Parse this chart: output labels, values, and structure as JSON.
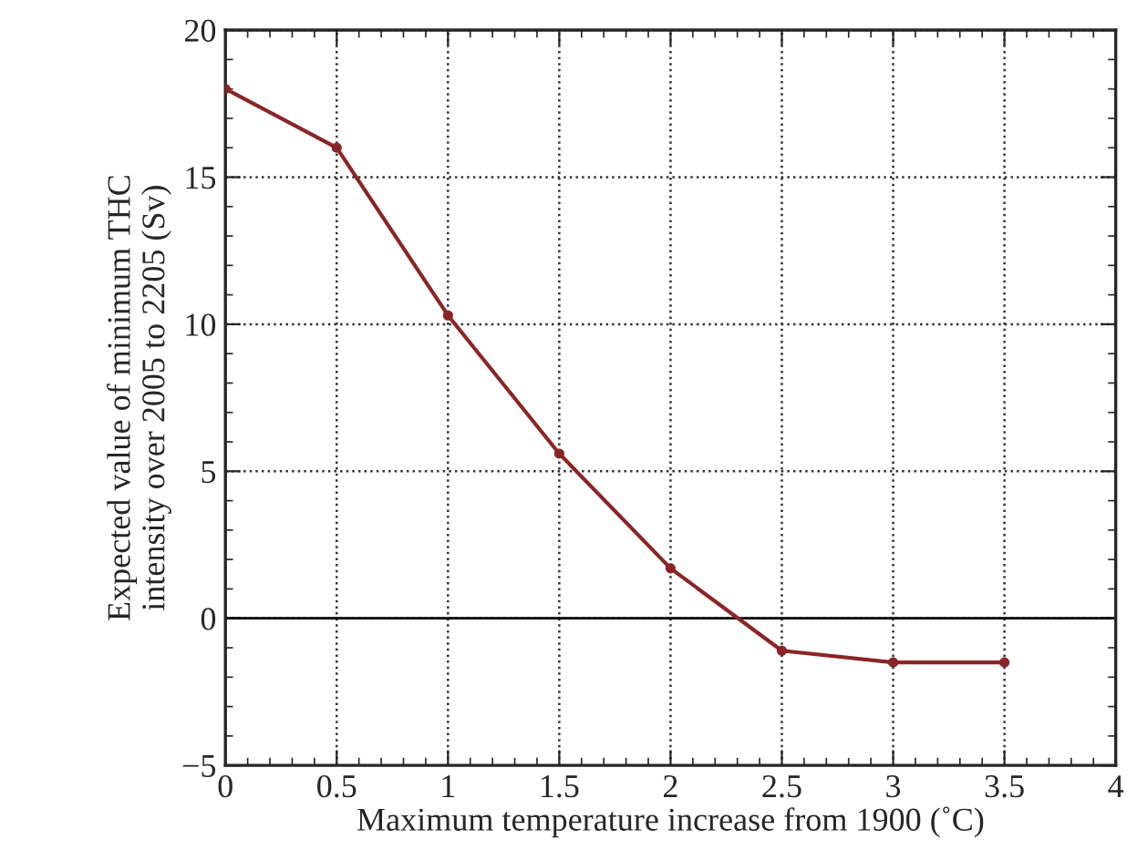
{
  "chart_data": {
    "type": "line",
    "xlabel": "Maximum temperature increase from 1900 (˚C)",
    "ylabel": "Expected value of minimum THC\nintensity over 2005 to 2205 (Sv)",
    "x": [
      0,
      0.5,
      1,
      1.5,
      2,
      2.5,
      3,
      3.5
    ],
    "series": [
      {
        "color": "#8b2525",
        "values": [
          18,
          16,
          10.3,
          5.6,
          1.7,
          -1.1,
          -1.5,
          -1.5
        ]
      }
    ],
    "xlim": [
      0,
      4
    ],
    "xticks": [
      0,
      0.5,
      1,
      1.5,
      2,
      2.5,
      3,
      3.5,
      4
    ],
    "ylim": [
      -5,
      20
    ],
    "yticks": [
      {
        "value": -5,
        "label": "−5"
      },
      0,
      5,
      10,
      15,
      20
    ],
    "ref_lines": [
      {
        "axis": "y",
        "value": 0,
        "color": "#000000",
        "line_style": "solid"
      }
    ],
    "grid": true,
    "marker": "circle",
    "line_style": "solid",
    "legend": false
  }
}
